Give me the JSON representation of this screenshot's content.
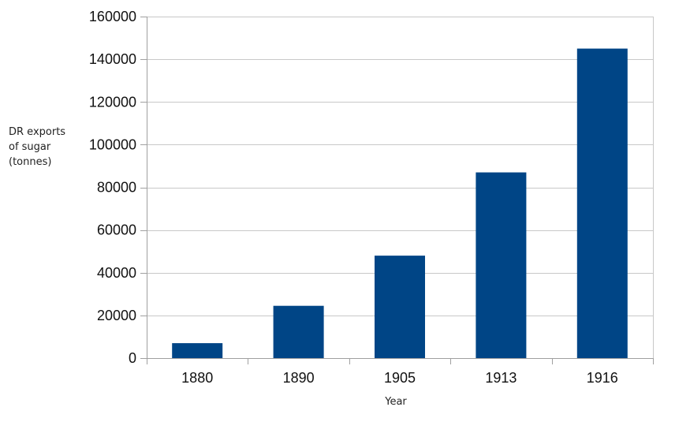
{
  "chart_data": {
    "type": "bar",
    "categories": [
      "1880",
      "1890",
      "1905",
      "1913",
      "1916"
    ],
    "values": [
      7000,
      24500,
      48000,
      87000,
      145000
    ],
    "title": "",
    "xlabel": "Year",
    "ylabel_lines": [
      "DR exports",
      "of sugar",
      "(tonnes)"
    ],
    "ylim": [
      0,
      160000
    ],
    "yticks": [
      "0",
      "20000",
      "40000",
      "60000",
      "80000",
      "100000",
      "120000",
      "140000",
      "160000"
    ],
    "grid": true,
    "bar_color": "#004586"
  }
}
